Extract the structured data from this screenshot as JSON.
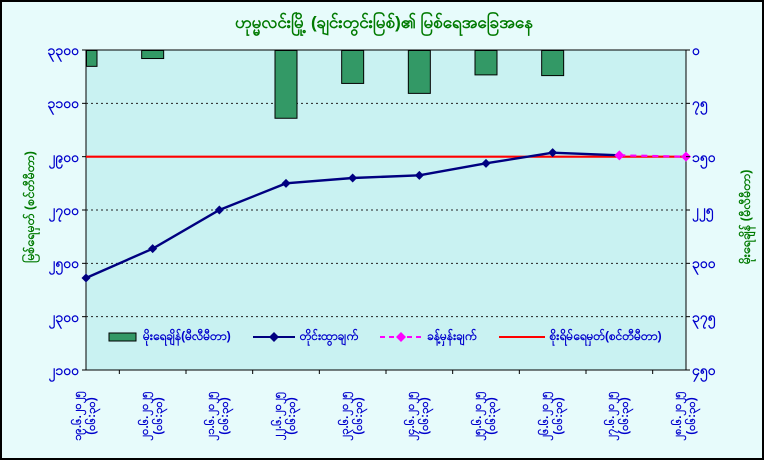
{
  "title": "ဟုမ္မလင်းမြို့ (ချင်းတွင်းမြစ်)၏ မြစ်ရေအခြေအနေ",
  "colors": {
    "chart_bg": "#e7fbfb",
    "plot_bg": "#c9f2f2",
    "title_green": "#007a00",
    "axis_text_blue": "#0000cc",
    "bar_fill": "#339966",
    "measured_line": "#000080",
    "forecast_line": "#ff00ff",
    "danger_line": "#ff0000",
    "gridline": "#222222"
  },
  "left_axis": {
    "title": "မြစ်ရေမှတ် (စင်တီမီတာ)",
    "tick_labels": [
      "၃၃၀၀",
      "၃၁၀၀",
      "၂၉၀၀",
      "၂၇၀၀",
      "၂၅၀၀",
      "၂၃၀၀",
      "၂၁၀၀"
    ],
    "tick_values": [
      3300,
      3100,
      2900,
      2700,
      2500,
      2300,
      2100
    ],
    "min": 2100,
    "max": 3300
  },
  "right_axis": {
    "title": "မိုးရေချိန် (မီလီမီတာ)",
    "tick_labels": [
      "၀",
      "၇၅",
      "၁၅၀",
      "၂၂၅",
      "၃၀၀",
      "၃၇၅",
      "၄၅၀"
    ],
    "tick_values": [
      0,
      75,
      150,
      225,
      300,
      375,
      450
    ],
    "min": 0,
    "max": 450,
    "reversed": true
  },
  "x_axis": {
    "date_labels": [
      "၁၉.၆.၂၀၂၅",
      "၂၀.၆.၂၀၂၅",
      "၂၁.၆.၂၀၂၅",
      "၂၂.၆.၂၀၂၅",
      "၂၃.၆.၂၀၂၅",
      "၂၄.၆.၂၀၂၅",
      "၂၅.၆.၂၀၂၅",
      "၂၆.၆.၂၀၂၅",
      "၂၇.၆.၂၀၂၅",
      "၂၈.၆.၂၀၂၅"
    ],
    "time_label": "(၀၆:၃၀)"
  },
  "legend": [
    {
      "marker": "bar-swatch",
      "label": "မိုးရေချိန်(မီလီမီတာ)"
    },
    {
      "marker": "line-diamond",
      "label": "တိုင်းထွာချက်"
    },
    {
      "marker": "dashed-diamond",
      "label": "ခန့်မှန်းချက်"
    },
    {
      "marker": "line",
      "label": "စိုးရိမ်ရေမှတ်(စင်တီမီတာ)"
    }
  ],
  "chart_data": {
    "type": "bar",
    "subtype": "combo-bar-line",
    "title": "ဟုမ္မလင်းမြို့ (ချင်းတွင်းမြစ်)၏ မြစ်ရေအခြေအနေ",
    "categories": [
      "19.6.2025 (06:30)",
      "20.6.2025 (06:30)",
      "21.6.2025 (06:30)",
      "22.6.2025 (06:30)",
      "23.6.2025 (06:30)",
      "24.6.2025 (06:30)",
      "25.6.2025 (06:30)",
      "26.6.2025 (06:30)",
      "27.6.2025 (06:30)",
      "28.6.2025 (06:30)"
    ],
    "series": [
      {
        "name": "မိုးရေချိန်(မီလီမီတာ)",
        "type": "bar",
        "axis": "right",
        "unit": "mm",
        "values": [
          23,
          12,
          0,
          96,
          47,
          61,
          35,
          36,
          0,
          0
        ]
      },
      {
        "name": "တိုင်းထွာချက်",
        "type": "line",
        "axis": "left",
        "unit": "cm",
        "values": [
          2445,
          2555,
          2700,
          2800,
          2820,
          2830,
          2875,
          2915,
          2905,
          null
        ]
      },
      {
        "name": "ခန့်မှန်းချက်",
        "type": "line-dashed",
        "axis": "left",
        "unit": "cm",
        "values": [
          null,
          null,
          null,
          null,
          null,
          null,
          null,
          null,
          2905,
          2900
        ]
      },
      {
        "name": "စိုးရိမ်ရေမှတ်(စင်တီမီတာ)",
        "type": "hline",
        "axis": "left",
        "unit": "cm",
        "value": 2900
      }
    ],
    "ylabel_left": "မြစ်ရေမှတ် (စင်တီမီတာ)",
    "ylabel_right": "မိုးရေချိန် (မီလီမီတာ)",
    "ylim_left": [
      2100,
      3300
    ],
    "ylim_right": [
      0,
      450
    ],
    "right_axis_reversed": true,
    "grid": "horizontal-dashed",
    "legend_position": "bottom-inside"
  }
}
